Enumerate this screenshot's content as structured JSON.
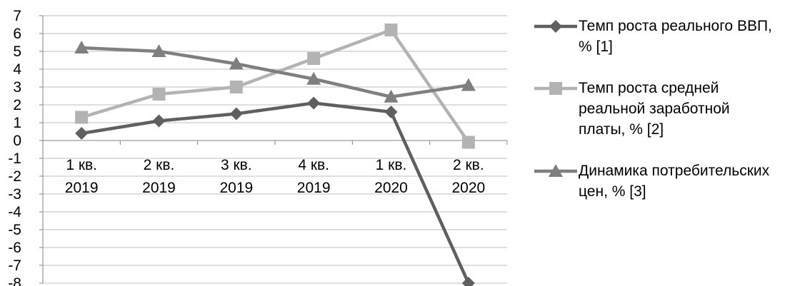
{
  "chart_data": {
    "type": "line",
    "categories": [
      [
        "1 кв.",
        "2019"
      ],
      [
        "2 кв.",
        "2019"
      ],
      [
        "3 кв.",
        "2019"
      ],
      [
        "4 кв.",
        "2019"
      ],
      [
        "1 кв.",
        "2020"
      ],
      [
        "2 кв.",
        "2020"
      ]
    ],
    "ylim": [
      -8,
      7
    ],
    "yticks": [
      7,
      6,
      5,
      4,
      3,
      2,
      1,
      0,
      -1,
      -2,
      -3,
      -4,
      -5,
      -6,
      -7,
      -8
    ],
    "grid": true,
    "legend_position": "right",
    "series": [
      {
        "name": "Темп роста реального ВВП,\n% [1]",
        "marker": "diamond",
        "color": "#5f5f5f",
        "values": [
          0.4,
          1.1,
          1.5,
          2.1,
          1.6,
          -8.0
        ]
      },
      {
        "name": "Темп роста средней\nреальной заработной\nплаты, % [2]",
        "marker": "square",
        "color": "#b3b3b3",
        "values": [
          1.3,
          2.6,
          3.0,
          4.6,
          6.2,
          -0.1
        ]
      },
      {
        "name": "Динамика потребительских\nцен, % [3]",
        "marker": "triangle",
        "color": "#7f7f7f",
        "values": [
          5.2,
          5.0,
          4.3,
          3.45,
          2.45,
          3.1
        ]
      }
    ]
  }
}
